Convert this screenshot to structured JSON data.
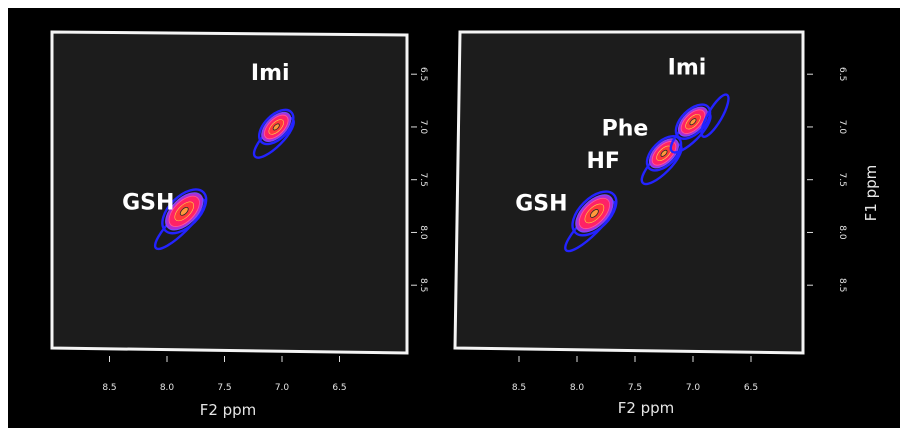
{
  "chart_data": [
    {
      "type": "scatter",
      "subtype": "2d-nmr-contour",
      "title": "",
      "xlabel": "F2 ppm",
      "ylabel": "",
      "xlim": [
        9.0,
        5.9
      ],
      "ylim": [
        6.1,
        9.0
      ],
      "x_reversed": true,
      "x_ticks": [
        "8.5",
        "8.0",
        "7.5",
        "7.0",
        "6.5"
      ],
      "y_ticks": [
        "6.5",
        "7.0",
        "7.5",
        "8.0",
        "8.5"
      ],
      "grid": false,
      "points": [
        {
          "label": "GSH",
          "x": 7.85,
          "y": 7.8
        },
        {
          "label": "Imi",
          "x": 7.05,
          "y": 7.0
        }
      ],
      "annotations": [
        "GSH",
        "Imi"
      ]
    },
    {
      "type": "scatter",
      "subtype": "2d-nmr-contour",
      "title": "",
      "xlabel": "F2 ppm",
      "ylabel": "F1 ppm",
      "xlim": [
        9.0,
        5.9
      ],
      "ylim": [
        6.1,
        9.0
      ],
      "x_reversed": true,
      "x_ticks": [
        "8.5",
        "8.0",
        "7.5",
        "7.0",
        "6.5"
      ],
      "y_ticks": [
        "6.5",
        "7.0",
        "7.5",
        "8.0",
        "8.5"
      ],
      "grid": false,
      "points": [
        {
          "label": "GSH",
          "x": 7.85,
          "y": 7.82
        },
        {
          "label": "HF",
          "x": 7.8,
          "y": 7.75
        },
        {
          "label": "Phe",
          "x": 7.25,
          "y": 7.25
        },
        {
          "label": "Imi",
          "x": 7.0,
          "y": 6.95
        }
      ],
      "annotations": [
        "GSH",
        "HF",
        "Phe",
        "Imi"
      ]
    }
  ],
  "colors": {
    "background": "#000000",
    "plot_area": "#1c1c1c",
    "frame": "#f4f4f4",
    "contour_low": "#2323ff",
    "contour_mid": "#b22cd0",
    "contour_high": "#ff2266",
    "contour_peak": "#ff9a3a"
  }
}
